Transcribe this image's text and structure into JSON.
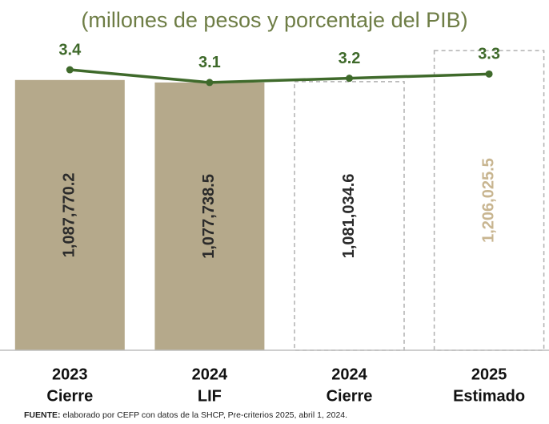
{
  "chart_data": {
    "type": "bar",
    "title": "(millones de pesos y porcentaje del PIB)",
    "categories": [
      [
        "2023",
        "Cierre"
      ],
      [
        "2024",
        "LIF"
      ],
      [
        "2024",
        "Cierre"
      ],
      [
        "2025",
        "Estimado"
      ]
    ],
    "values": [
      1087770.2,
      1077738.5,
      1081034.6,
      1206025.5
    ],
    "value_labels": [
      "1,087,770.2",
      "1,077,738.5",
      "1,081,034.6",
      "1,206,025.5"
    ],
    "fills": [
      "#b5a98b",
      "#b5a98b",
      "none",
      "none"
    ],
    "label_colors": [
      "#2b2b2b",
      "#2b2b2b",
      "#2b2b2b",
      "#c8b590"
    ],
    "ylim": [
      0,
      1300000
    ],
    "line": {
      "type": "line",
      "axis": "y2",
      "color": "#3f6a2b",
      "values": [
        3.4,
        3.1,
        3.2,
        3.3
      ]
    },
    "y2lim": [
      -3.2,
      4.4
    ],
    "source_label": "FUENTE:",
    "source": "elaborado por CEFP con datos de la SHCP, Pre-criterios 2025, abril 1, 2024."
  }
}
